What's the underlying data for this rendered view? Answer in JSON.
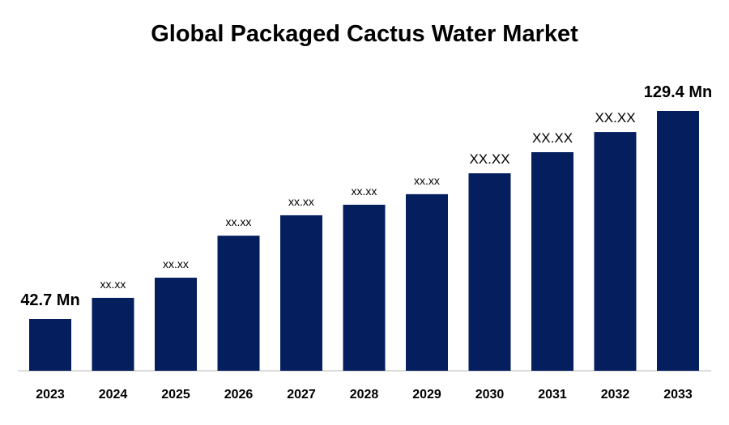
{
  "chart_data": {
    "type": "bar",
    "title": "Global Packaged Cactus Water Market",
    "categories": [
      "2023",
      "2024",
      "2025",
      "2026",
      "2027",
      "2028",
      "2029",
      "2030",
      "2031",
      "2032",
      "2033"
    ],
    "values": [
      42.7,
      51.5,
      59.9,
      77.4,
      85.9,
      90.3,
      94.7,
      103.4,
      112.2,
      120.6,
      129.4
    ],
    "value_labels": [
      "42.7 Mn",
      "xx.xx",
      "xx.xx",
      "xx.xx",
      "xx.xx",
      "xx.xx",
      "xx.xx",
      "XX.XX",
      "XX.XX",
      "XX.XX",
      "129.4 Mn"
    ],
    "color": "#041e5e"
  }
}
